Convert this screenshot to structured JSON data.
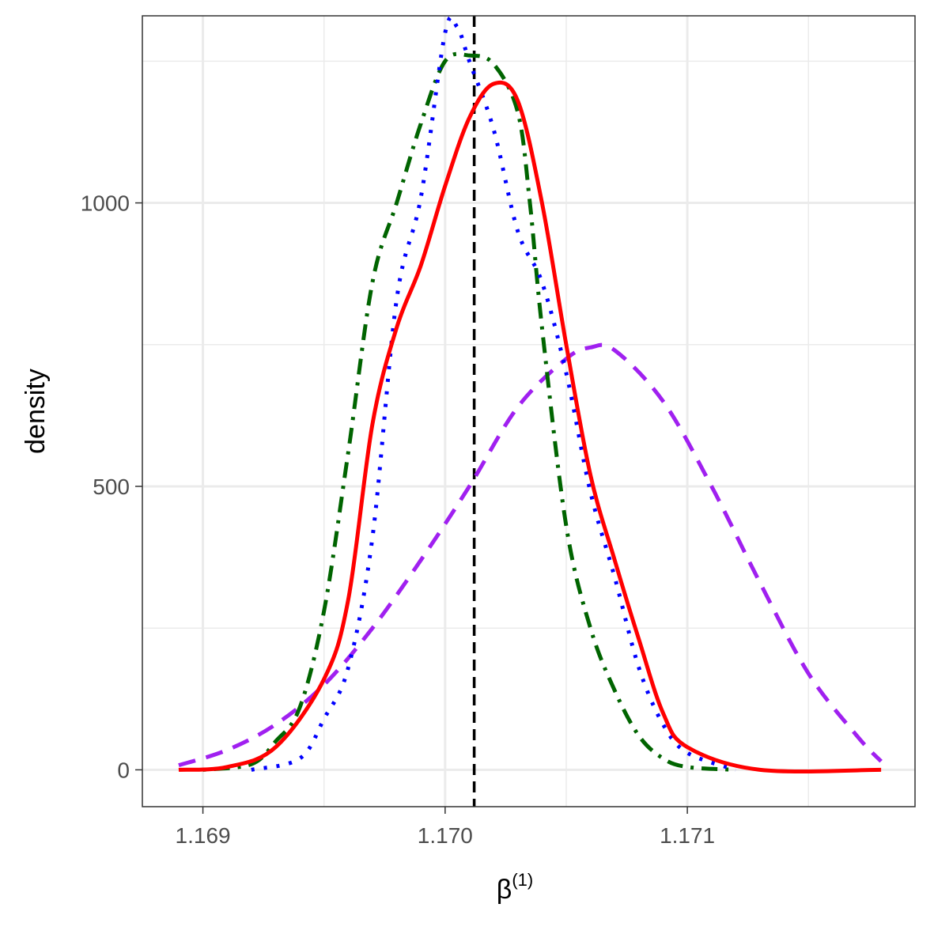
{
  "chart_data": {
    "type": "line",
    "title": "",
    "xlabel": "β",
    "xlabel_superscript": "(1)",
    "ylabel": "density",
    "xlim": [
      1.16875,
      1.17194
    ],
    "ylim": [
      -65,
      1330
    ],
    "x_ticks": [
      1.169,
      1.17,
      1.171
    ],
    "x_tick_labels": [
      "1.169",
      "1.170",
      "1.171"
    ],
    "y_ticks": [
      0,
      500,
      1000
    ],
    "y_tick_labels": [
      "0",
      "500",
      "1000"
    ],
    "x_minor_grid": [
      1.1695,
      1.1705,
      1.1715
    ],
    "y_minor_grid": [
      250,
      750,
      1250
    ],
    "grid": true,
    "legend": "none",
    "reference_line": {
      "x": 1.17012,
      "color": "#000000",
      "style": "dashed"
    },
    "series": [
      {
        "color": "#A020F0",
        "style": "dashed",
        "x": [
          1.1689,
          1.1691,
          1.1693,
          1.1695,
          1.1697,
          1.1699,
          1.1701,
          1.1703,
          1.1705,
          1.1706,
          1.1707,
          1.1709,
          1.1711,
          1.1713,
          1.1715,
          1.1717,
          1.1718
        ],
        "y": [
          8,
          35,
          80,
          150,
          250,
          370,
          500,
          640,
          725,
          745,
          740,
          650,
          500,
          330,
          170,
          60,
          15
        ]
      },
      {
        "color": "#006400",
        "style": "dotdash",
        "x": [
          1.169,
          1.1692,
          1.1693,
          1.1694,
          1.1695,
          1.1696,
          1.1697,
          1.1698,
          1.1699,
          1.17,
          1.1701,
          1.1702,
          1.1703,
          1.17035,
          1.1704,
          1.1705,
          1.1706,
          1.1707,
          1.1708,
          1.1709,
          1.171,
          1.1712
        ],
        "y": [
          0,
          10,
          50,
          110,
          280,
          560,
          860,
          1000,
          1140,
          1250,
          1260,
          1245,
          1160,
          1000,
          780,
          430,
          250,
          140,
          60,
          20,
          5,
          0
        ]
      },
      {
        "color": "#0000FF",
        "style": "dotted",
        "x": [
          1.1692,
          1.1694,
          1.1695,
          1.1696,
          1.1697,
          1.1698,
          1.1699,
          1.17,
          1.17005,
          1.1701,
          1.1702,
          1.1703,
          1.1704,
          1.1705,
          1.1706,
          1.1707,
          1.1708,
          1.1709,
          1.171,
          1.1712
        ],
        "y": [
          0,
          20,
          90,
          180,
          410,
          830,
          1010,
          1300,
          1310,
          1250,
          1130,
          950,
          860,
          700,
          490,
          340,
          180,
          80,
          30,
          0
        ]
      },
      {
        "color": "#FF0000",
        "style": "solid",
        "x": [
          1.1689,
          1.1691,
          1.1693,
          1.1695,
          1.1696,
          1.1697,
          1.1698,
          1.1699,
          1.17,
          1.1701,
          1.1702,
          1.1703,
          1.1704,
          1.1705,
          1.1706,
          1.1707,
          1.1708,
          1.1709,
          1.171,
          1.1713,
          1.1718
        ],
        "y": [
          0,
          5,
          40,
          160,
          300,
          610,
          780,
          890,
          1030,
          1150,
          1210,
          1180,
          1000,
          750,
          520,
          370,
          230,
          100,
          40,
          0,
          0
        ]
      }
    ]
  }
}
